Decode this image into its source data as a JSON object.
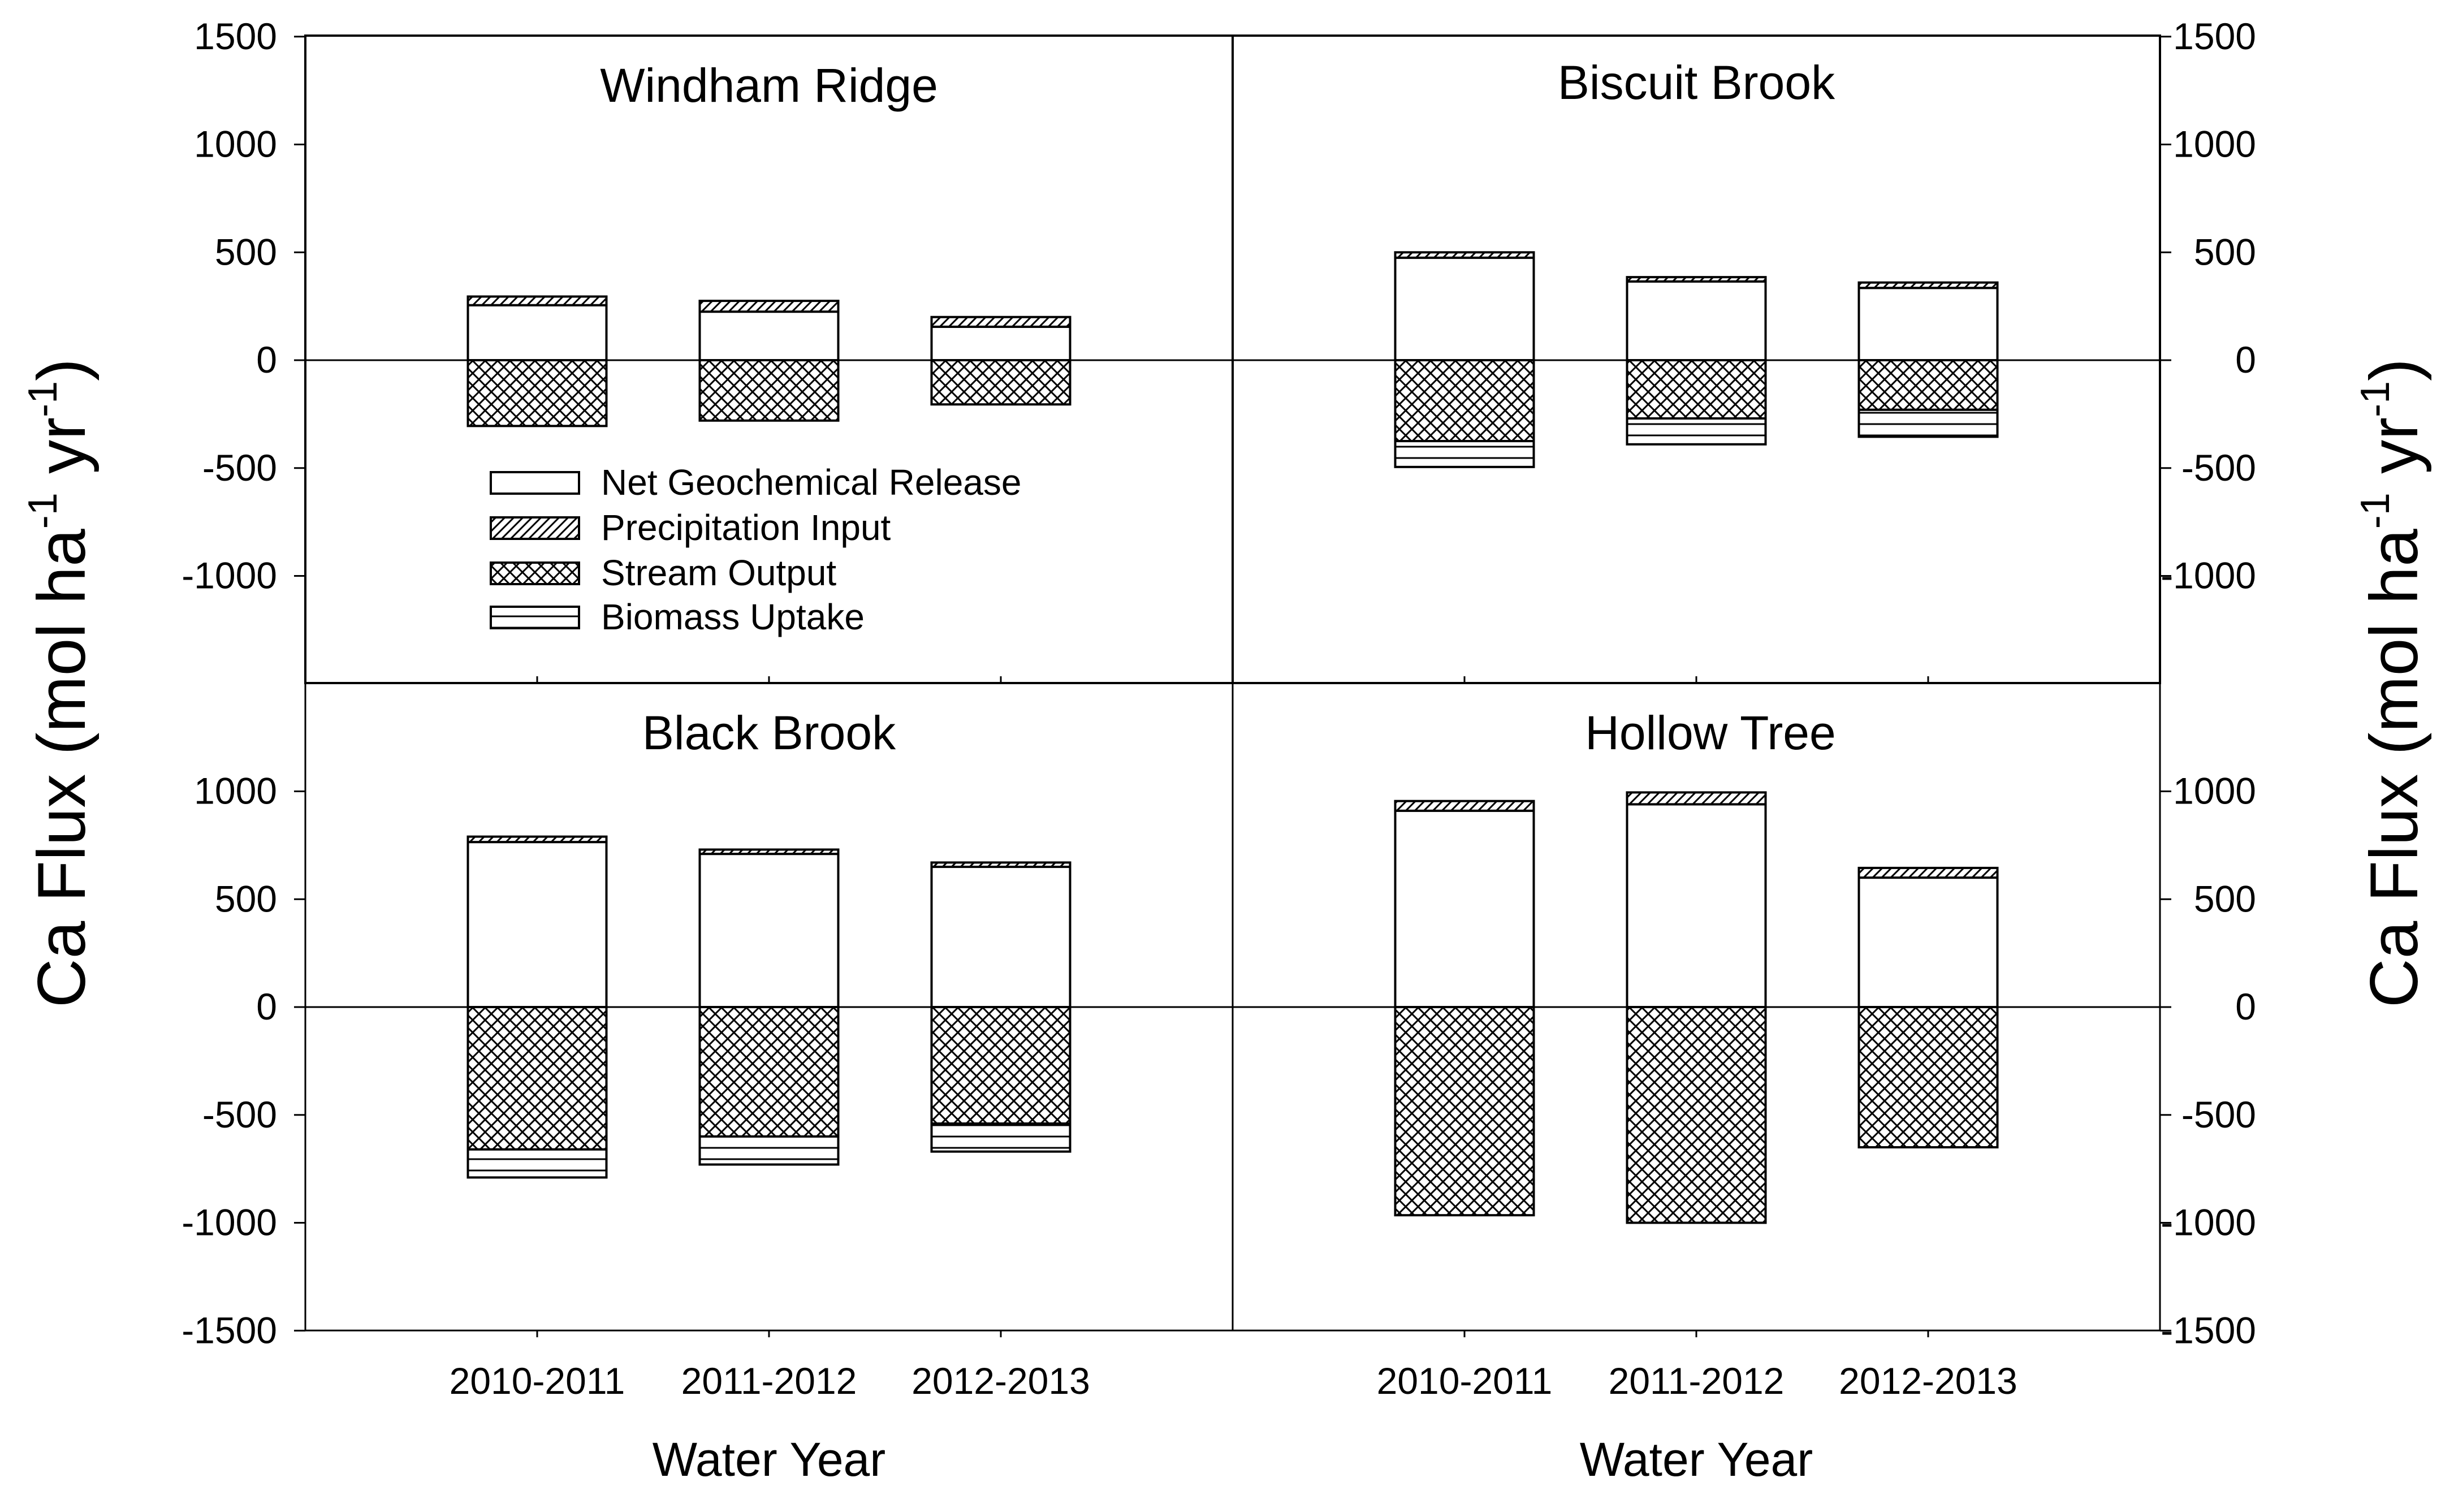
{
  "chart_data": {
    "type": "bar",
    "stacked": true,
    "layout": "2x2 panels",
    "ylabel": "Ca Flux (mol ha-1 yr-1)",
    "xlabel": "Water Year",
    "categories": [
      "2010-2011",
      "2011-2012",
      "2012-2013"
    ],
    "ylim_top": [
      -1500,
      1500
    ],
    "ylim_bottom": [
      -1500,
      1500
    ],
    "yticks_top": [
      1500,
      1000,
      500,
      0,
      -500,
      -1000
    ],
    "yticks_bottom": [
      1000,
      500,
      0,
      -500,
      -1000,
      -1500
    ],
    "legend": {
      "placement": "inside Windham Ridge panel, lower-left",
      "entries": [
        {
          "key": "net_release",
          "label": "Net Geochemical Release",
          "pattern": "blank"
        },
        {
          "key": "precip",
          "label": "Precipitation Input",
          "pattern": "diagonal"
        },
        {
          "key": "stream",
          "label": "Stream Output",
          "pattern": "crosshatch"
        },
        {
          "key": "biomass",
          "label": "Biomass Uptake",
          "pattern": "horizontal"
        }
      ]
    },
    "panels": [
      {
        "title": "Windham Ridge",
        "position": "top-left",
        "series": [
          {
            "name": "Net Geochemical Release",
            "values": [
              255,
              225,
              155
            ]
          },
          {
            "name": "Precipitation Input",
            "values": [
              40,
              50,
              45
            ]
          },
          {
            "name": "Stream Output",
            "values": [
              -305,
              -280,
              -205
            ]
          },
          {
            "name": "Biomass Uptake",
            "values": [
              0,
              0,
              0
            ]
          }
        ]
      },
      {
        "title": "Biscuit Brook",
        "position": "top-right",
        "series": [
          {
            "name": "Net Geochemical Release",
            "values": [
              475,
              365,
              335
            ]
          },
          {
            "name": "Precipitation Input",
            "values": [
              25,
              20,
              25
            ]
          },
          {
            "name": "Stream Output",
            "values": [
              -375,
              -270,
              -230
            ]
          },
          {
            "name": "Biomass Uptake",
            "values": [
              -120,
              -120,
              -125
            ]
          }
        ]
      },
      {
        "title": "Black Brook",
        "position": "bottom-left",
        "series": [
          {
            "name": "Net Geochemical Release",
            "values": [
              765,
              710,
              650
            ]
          },
          {
            "name": "Precipitation Input",
            "values": [
              25,
              20,
              20
            ]
          },
          {
            "name": "Stream Output",
            "values": [
              -660,
              -600,
              -540
            ]
          },
          {
            "name": "Biomass Uptake",
            "values": [
              -130,
              -130,
              -130
            ]
          }
        ]
      },
      {
        "title": "Hollow Tree",
        "position": "bottom-right",
        "series": [
          {
            "name": "Net Geochemical Release",
            "values": [
              910,
              940,
              600
            ]
          },
          {
            "name": "Precipitation Input",
            "values": [
              45,
              55,
              45
            ]
          },
          {
            "name": "Stream Output",
            "values": [
              -965,
              -1000,
              -650
            ]
          },
          {
            "name": "Biomass Uptake",
            "values": [
              0,
              0,
              0
            ]
          }
        ]
      }
    ]
  }
}
